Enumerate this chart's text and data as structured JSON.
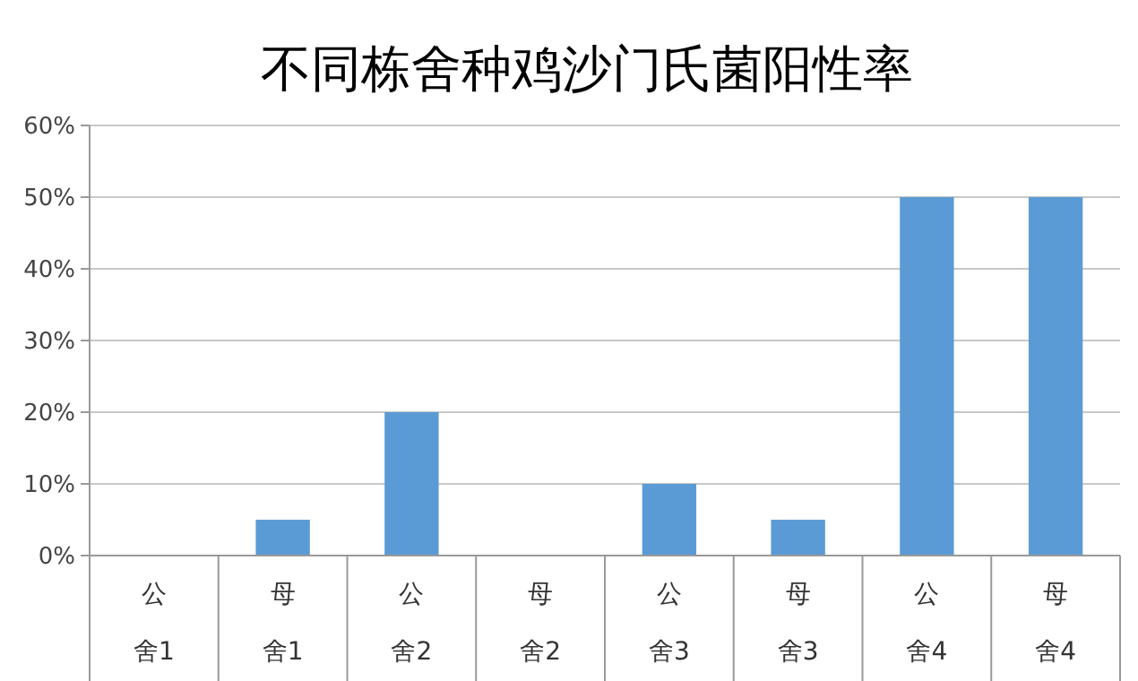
{
  "chart_data": {
    "type": "bar",
    "title": "不同栋舍种鸡沙门氏菌阳性率",
    "categories": [
      "公舍1",
      "母舍1",
      "公舍2",
      "母舍2",
      "公舍3",
      "母舍3",
      "公舍4",
      "母舍4"
    ],
    "values": [
      0,
      5,
      20,
      0,
      10,
      5,
      50,
      50
    ],
    "color": "#5b9bd5",
    "ylim": [
      0,
      60
    ],
    "yticks": [
      {
        "value": 0,
        "label": "0%"
      },
      {
        "value": 10,
        "label": "10%"
      },
      {
        "value": 20,
        "label": "20%"
      },
      {
        "value": 30,
        "label": "30%"
      },
      {
        "value": 40,
        "label": "40%"
      },
      {
        "value": 50,
        "label": "50%"
      },
      {
        "value": 60,
        "label": "60%"
      }
    ],
    "grid": "y"
  }
}
